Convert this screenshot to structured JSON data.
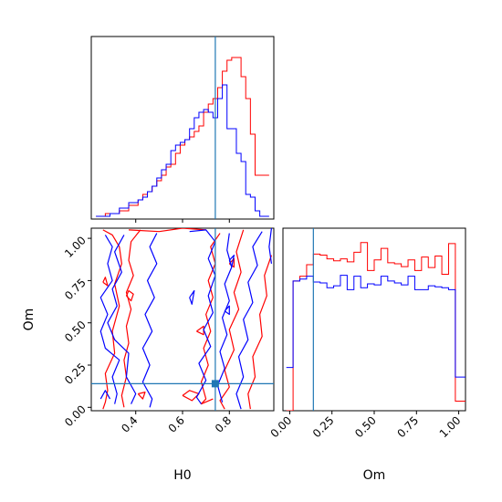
{
  "chart_data": [
    {
      "panel": "H0-histogram",
      "type": "step",
      "xlim": [
        0.21,
        0.99
      ],
      "bin_edges": [
        0.23,
        0.25,
        0.27,
        0.29,
        0.31,
        0.33,
        0.35,
        0.37,
        0.39,
        0.41,
        0.43,
        0.45,
        0.47,
        0.49,
        0.51,
        0.53,
        0.55,
        0.57,
        0.59,
        0.61,
        0.63,
        0.65,
        0.67,
        0.69,
        0.71,
        0.73,
        0.75,
        0.77,
        0.79,
        0.81,
        0.83,
        0.85,
        0.87,
        0.89,
        0.91,
        0.93,
        0.95,
        0.97
      ],
      "series": [
        {
          "color": "#ff0000",
          "values": [
            0.5,
            0.5,
            1.0,
            1.0,
            1.0,
            1.5,
            1.5,
            2.5,
            2.5,
            3.5,
            4.5,
            5.0,
            6.0,
            7.0,
            8.0,
            9.5,
            10.0,
            12.0,
            13.5,
            14.5,
            15.0,
            16.0,
            17.0,
            19.5,
            21.0,
            22.0,
            24.0,
            27.0,
            29.0,
            29.5,
            29.5,
            26.0,
            22.0,
            15.5,
            8.0,
            8.0,
            8.0
          ]
        },
        {
          "color": "#0000ff",
          "values": [
            0.5,
            0.5,
            0.5,
            1.0,
            1.0,
            2.0,
            2.0,
            3.0,
            3.0,
            3.5,
            4.0,
            5.0,
            6.0,
            7.5,
            9.0,
            10.0,
            12.5,
            13.5,
            14.0,
            14.5,
            16.5,
            18.5,
            19.5,
            20.0,
            19.5,
            18.5,
            22.0,
            24.5,
            16.5,
            16.5,
            12.0,
            10.5,
            4.5,
            4.0,
            1.5,
            0.5,
            0.5
          ]
        }
      ],
      "ylim": [
        0,
        30
      ],
      "truth_x": 0.74
    },
    {
      "panel": "H0-Om-contours",
      "type": "contour",
      "xlabel": "H0",
      "ylabel": "Om",
      "xlim": [
        0.21,
        0.99
      ],
      "ylim": [
        -0.02,
        1.06
      ],
      "x_ticks": [
        "0.4",
        "0.6",
        "0.8"
      ],
      "x_tick_values": [
        0.4,
        0.6,
        0.8
      ],
      "y_ticks": [
        "0.00",
        "0.25",
        "0.50",
        "0.75",
        "1.00"
      ],
      "y_tick_values": [
        0.0,
        0.25,
        0.5,
        0.75,
        1.0
      ],
      "series": [
        {
          "color": "#ff0000",
          "contours": [
            [
              [
                0.26,
                1.05
              ],
              [
                0.3,
                1.02
              ],
              [
                0.33,
                0.95
              ],
              [
                0.34,
                0.85
              ],
              [
                0.31,
                0.73
              ],
              [
                0.33,
                0.6
              ],
              [
                0.3,
                0.45
              ],
              [
                0.31,
                0.32
              ],
              [
                0.27,
                0.2
              ],
              [
                0.28,
                0.1
              ],
              [
                0.27,
                0.03
              ],
              [
                0.26,
                -0.01
              ]
            ],
            [
              [
                0.42,
                1.05
              ],
              [
                0.38,
                0.98
              ],
              [
                0.37,
                0.87
              ],
              [
                0.39,
                0.78
              ],
              [
                0.36,
                0.68
              ],
              [
                0.38,
                0.58
              ],
              [
                0.36,
                0.48
              ],
              [
                0.37,
                0.38
              ],
              [
                0.35,
                0.28
              ],
              [
                0.36,
                0.18
              ],
              [
                0.34,
                0.07
              ],
              [
                0.35,
                0.0
              ]
            ],
            [
              [
                0.86,
                1.05
              ],
              [
                0.83,
                0.92
              ],
              [
                0.85,
                0.8
              ],
              [
                0.82,
                0.68
              ],
              [
                0.84,
                0.58
              ],
              [
                0.8,
                0.46
              ],
              [
                0.82,
                0.34
              ],
              [
                0.78,
                0.22
              ],
              [
                0.8,
                0.12
              ],
              [
                0.76,
                0.04
              ],
              [
                0.78,
                -0.01
              ]
            ],
            [
              [
                0.98,
                0.9
              ],
              [
                0.95,
                0.78
              ],
              [
                0.96,
                0.66
              ],
              [
                0.93,
                0.55
              ],
              [
                0.94,
                0.42
              ],
              [
                0.9,
                0.3
              ],
              [
                0.91,
                0.18
              ],
              [
                0.88,
                0.08
              ],
              [
                0.89,
                -0.01
              ]
            ],
            [
              [
                0.76,
                1.03
              ],
              [
                0.72,
                0.95
              ],
              [
                0.74,
                0.85
              ],
              [
                0.71,
                0.75
              ],
              [
                0.73,
                0.65
              ],
              [
                0.7,
                0.55
              ],
              [
                0.72,
                0.45
              ],
              [
                0.69,
                0.35
              ],
              [
                0.71,
                0.25
              ],
              [
                0.68,
                0.15
              ],
              [
                0.7,
                0.05
              ],
              [
                0.68,
                0.02
              ],
              [
                0.73,
                0.05
              ]
            ],
            [
              [
                0.37,
                1.05
              ],
              [
                0.5,
                1.04
              ],
              [
                0.6,
                1.06
              ],
              [
                0.7,
                1.05
              ]
            ],
            [
              [
                0.6,
                0.07
              ],
              [
                0.64,
                0.04
              ],
              [
                0.67,
                0.08
              ],
              [
                0.63,
                0.1
              ],
              [
                0.6,
                0.07
              ]
            ],
            [
              [
                0.41,
                0.08
              ],
              [
                0.43,
                0.05
              ],
              [
                0.44,
                0.09
              ],
              [
                0.41,
                0.08
              ]
            ],
            [
              [
                0.36,
                0.66
              ],
              [
                0.38,
                0.63
              ],
              [
                0.39,
                0.67
              ],
              [
                0.37,
                0.69
              ],
              [
                0.36,
                0.66
              ]
            ],
            [
              [
                0.26,
                0.74
              ],
              [
                0.28,
                0.72
              ],
              [
                0.27,
                0.77
              ],
              [
                0.26,
                0.74
              ]
            ],
            [
              [
                0.66,
                0.45
              ],
              [
                0.69,
                0.43
              ],
              [
                0.69,
                0.48
              ],
              [
                0.66,
                0.45
              ]
            ],
            [
              [
                0.8,
                0.85
              ],
              [
                0.82,
                0.83
              ],
              [
                0.82,
                0.88
              ],
              [
                0.8,
                0.85
              ]
            ]
          ]
        },
        {
          "color": "#0000ff",
          "contours": [
            [
              [
                0.27,
                1.02
              ],
              [
                0.3,
                0.95
              ],
              [
                0.28,
                0.85
              ],
              [
                0.3,
                0.75
              ],
              [
                0.25,
                0.65
              ],
              [
                0.28,
                0.55
              ],
              [
                0.25,
                0.45
              ],
              [
                0.27,
                0.35
              ],
              [
                0.33,
                0.28
              ],
              [
                0.3,
                0.18
              ],
              [
                0.32,
                0.08
              ],
              [
                0.31,
                0.02
              ]
            ],
            [
              [
                0.35,
                1.02
              ],
              [
                0.31,
                0.92
              ],
              [
                0.34,
                0.8
              ],
              [
                0.3,
                0.7
              ],
              [
                0.32,
                0.6
              ],
              [
                0.28,
                0.5
              ],
              [
                0.31,
                0.4
              ],
              [
                0.37,
                0.32
              ],
              [
                0.36,
                0.18
              ],
              [
                0.4,
                0.08
              ],
              [
                0.38,
                0.02
              ]
            ],
            [
              [
                0.49,
                1.03
              ],
              [
                0.46,
                0.95
              ],
              [
                0.49,
                0.85
              ],
              [
                0.45,
                0.75
              ],
              [
                0.48,
                0.65
              ],
              [
                0.44,
                0.55
              ],
              [
                0.47,
                0.45
              ],
              [
                0.43,
                0.35
              ],
              [
                0.46,
                0.25
              ],
              [
                0.43,
                0.15
              ],
              [
                0.47,
                0.05
              ],
              [
                0.46,
                0.0
              ]
            ],
            [
              [
                0.63,
                1.04
              ],
              [
                0.7,
                1.05
              ],
              [
                0.74,
                0.98
              ],
              [
                0.71,
                0.88
              ],
              [
                0.74,
                0.78
              ],
              [
                0.71,
                0.66
              ],
              [
                0.73,
                0.56
              ],
              [
                0.69,
                0.46
              ],
              [
                0.72,
                0.36
              ],
              [
                0.67,
                0.26
              ],
              [
                0.7,
                0.16
              ],
              [
                0.66,
                0.06
              ],
              [
                0.68,
                0.02
              ]
            ],
            [
              [
                0.8,
                1.03
              ],
              [
                0.79,
                0.93
              ],
              [
                0.81,
                0.83
              ],
              [
                0.78,
                0.73
              ],
              [
                0.8,
                0.63
              ],
              [
                0.77,
                0.53
              ],
              [
                0.79,
                0.43
              ],
              [
                0.76,
                0.33
              ],
              [
                0.78,
                0.23
              ],
              [
                0.75,
                0.13
              ],
              [
                0.77,
                0.03
              ]
            ],
            [
              [
                0.94,
                1.04
              ],
              [
                0.9,
                0.95
              ],
              [
                0.92,
                0.84
              ],
              [
                0.88,
                0.74
              ],
              [
                0.9,
                0.62
              ],
              [
                0.86,
                0.52
              ],
              [
                0.88,
                0.4
              ],
              [
                0.84,
                0.3
              ],
              [
                0.86,
                0.18
              ],
              [
                0.83,
                0.08
              ],
              [
                0.85,
                -0.01
              ]
            ],
            [
              [
                0.98,
                1.06
              ],
              [
                0.97,
                0.95
              ],
              [
                0.98,
                0.85
              ]
            ],
            [
              [
                0.25,
                0.05
              ],
              [
                0.27,
                0.1
              ],
              [
                0.29,
                0.05
              ]
            ],
            [
              [
                0.63,
                0.65
              ],
              [
                0.64,
                0.61
              ],
              [
                0.65,
                0.69
              ],
              [
                0.63,
                0.65
              ]
            ],
            [
              [
                0.78,
                0.57
              ],
              [
                0.8,
                0.55
              ],
              [
                0.8,
                0.6
              ],
              [
                0.78,
                0.57
              ]
            ],
            [
              [
                0.8,
                0.87
              ],
              [
                0.81,
                0.83
              ],
              [
                0.82,
                0.9
              ],
              [
                0.8,
                0.87
              ]
            ]
          ]
        }
      ],
      "truth_x": 0.74,
      "truth_y": 0.14
    },
    {
      "panel": "Om-histogram",
      "type": "step",
      "xlabel": "Om",
      "xlim": [
        -0.04,
        1.04
      ],
      "x_ticks": [
        "0.00",
        "0.25",
        "0.50",
        "0.75",
        "1.00"
      ],
      "x_tick_values": [
        0.0,
        0.25,
        0.5,
        0.75,
        1.0
      ],
      "bin_edges": [
        -0.02,
        0.02,
        0.06,
        0.1,
        0.14,
        0.18,
        0.22,
        0.26,
        0.3,
        0.34,
        0.38,
        0.42,
        0.46,
        0.5,
        0.54,
        0.58,
        0.62,
        0.66,
        0.7,
        0.74,
        0.78,
        0.82,
        0.86,
        0.9,
        0.94,
        0.98,
        1.02,
        1.06
      ],
      "series": [
        {
          "color": "#ff0000",
          "values": [
            0.0,
            13.5,
            14.0,
            15.2,
            16.3,
            16.2,
            15.8,
            15.6,
            15.8,
            15.5,
            16.5,
            17.5,
            14.6,
            15.7,
            16.9,
            15.4,
            15.3,
            15.0,
            15.7,
            14.6,
            16.0,
            14.9,
            16.1,
            14.2,
            17.4,
            1.0,
            1.0
          ]
        },
        {
          "color": "#0000ff",
          "values": [
            4.5,
            13.5,
            13.7,
            14.0,
            13.4,
            13.3,
            12.8,
            13.0,
            14.1,
            12.6,
            14.0,
            12.8,
            13.2,
            13.1,
            14.0,
            13.5,
            13.3,
            13.1,
            14.0,
            12.6,
            12.6,
            13.0,
            12.9,
            12.8,
            12.6,
            3.5,
            3.5
          ]
        }
      ],
      "ylim": [
        0,
        19
      ],
      "truth_x": 0.14
    }
  ],
  "colors": {
    "series_red": "#ff0000",
    "series_blue": "#0000ff",
    "truth_line": "#1f77b4"
  }
}
